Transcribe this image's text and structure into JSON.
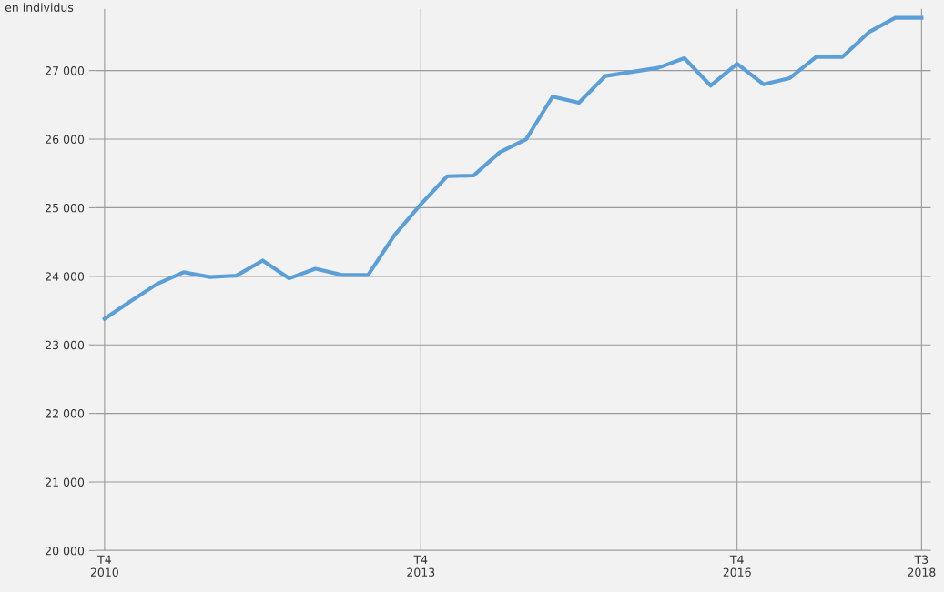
{
  "chart_data": {
    "type": "line",
    "ylabel": "en individus",
    "categories": [
      "T4\n2010",
      null,
      null,
      null,
      null,
      null,
      null,
      null,
      null,
      null,
      null,
      null,
      "T4\n2013",
      null,
      null,
      null,
      null,
      null,
      null,
      null,
      null,
      null,
      null,
      null,
      "T4\n2016",
      null,
      null,
      null,
      null,
      null,
      null,
      "T3\n2018"
    ],
    "series": [
      {
        "color": "#5b9fd8",
        "values": [
          23380,
          23640,
          23890,
          24060,
          23990,
          24010,
          24230,
          23970,
          24110,
          24020,
          24020,
          24600,
          25050,
          25460,
          25470,
          25810,
          26000,
          26620,
          26530,
          26920,
          26980,
          27040,
          27180,
          26780,
          27100,
          26800,
          26890,
          27200,
          27200,
          27560,
          27770,
          27770
        ]
      }
    ],
    "ylim": [
      20000,
      27900
    ],
    "yticks": [
      {
        "value": 20000,
        "label": "20 000"
      },
      {
        "value": 21000,
        "label": "21 000"
      },
      {
        "value": 22000,
        "label": "22 000"
      },
      {
        "value": 23000,
        "label": "23 000"
      },
      {
        "value": 24000,
        "label": "24 000"
      },
      {
        "value": 25000,
        "label": "25 000"
      },
      {
        "value": 26000,
        "label": "26 000"
      },
      {
        "value": 27000,
        "label": "27 000"
      }
    ],
    "grid": true,
    "legend": false,
    "marker": "none",
    "line_style": "solid"
  }
}
